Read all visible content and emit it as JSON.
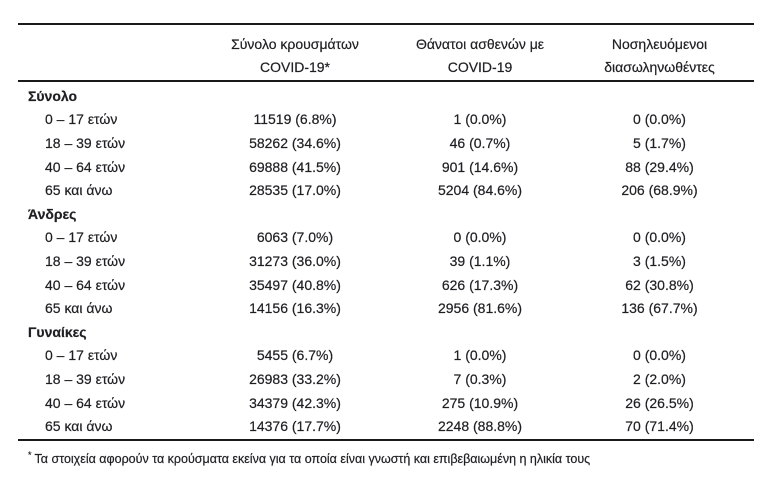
{
  "page": {
    "background_color": "#ffffff",
    "text_color": "#1f1f23",
    "rule_color": "#1a1a1a"
  },
  "table": {
    "column_headers": [
      {
        "line1": "Σύνολο κρουσμάτων",
        "line2": "COVID-19*"
      },
      {
        "line1": "Θάνατοι ασθενών με",
        "line2": "COVID-19"
      },
      {
        "line1": "Νοσηλευόμενοι",
        "line2": "διασωληνωθέντες"
      }
    ],
    "sections": [
      {
        "label": "Σύνολο",
        "rows": [
          {
            "label": "0 – 17 ετών",
            "cases": "11519 (6.8%)",
            "deaths": "1 (0.0%)",
            "intubated": "0 (0.0%)"
          },
          {
            "label": "18 – 39 ετών",
            "cases": "58262 (34.6%)",
            "deaths": "46 (0.7%)",
            "intubated": "5 (1.7%)"
          },
          {
            "label": "40 – 64 ετών",
            "cases": "69888 (41.5%)",
            "deaths": "901 (14.6%)",
            "intubated": "88 (29.4%)"
          },
          {
            "label": "65 και άνω",
            "cases": "28535 (17.0%)",
            "deaths": "5204 (84.6%)",
            "intubated": "206 (68.9%)"
          }
        ]
      },
      {
        "label": "Άνδρες",
        "rows": [
          {
            "label": "0 – 17 ετών",
            "cases": "6063 (7.0%)",
            "deaths": "0 (0.0%)",
            "intubated": "0 (0.0%)"
          },
          {
            "label": "18 – 39 ετών",
            "cases": "31273 (36.0%)",
            "deaths": "39 (1.1%)",
            "intubated": "3 (1.5%)"
          },
          {
            "label": "40 – 64 ετών",
            "cases": "35497 (40.8%)",
            "deaths": "626 (17.3%)",
            "intubated": "62 (30.8%)"
          },
          {
            "label": "65 και άνω",
            "cases": "14156 (16.3%)",
            "deaths": "2956 (81.6%)",
            "intubated": "136 (67.7%)"
          }
        ]
      },
      {
        "label": "Γυναίκες",
        "rows": [
          {
            "label": "0 – 17 ετών",
            "cases": "5455 (6.7%)",
            "deaths": "1 (0.0%)",
            "intubated": "0 (0.0%)"
          },
          {
            "label": "18 – 39 ετών",
            "cases": "26983 (33.2%)",
            "deaths": "7 (0.3%)",
            "intubated": "2 (2.0%)"
          },
          {
            "label": "40 – 64 ετών",
            "cases": "34379 (42.3%)",
            "deaths": "275 (10.9%)",
            "intubated": "26 (26.5%)"
          },
          {
            "label": "65 και άνω",
            "cases": "14376 (17.7%)",
            "deaths": "2248 (88.8%)",
            "intubated": "70 (71.4%)"
          }
        ]
      }
    ]
  },
  "footnote": {
    "marker": "*",
    "text": "Τα στοιχεία αφορούν τα κρούσματα εκείνα για τα οποία είναι γνωστή και επιβεβαιωμένη η ηλικία τους"
  }
}
